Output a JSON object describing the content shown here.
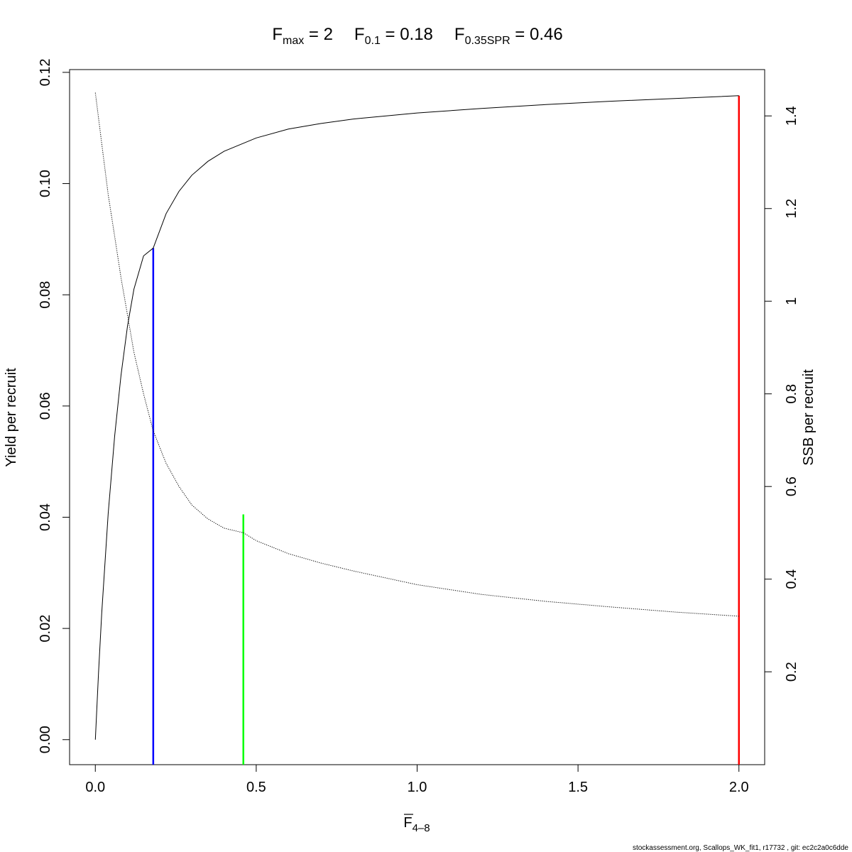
{
  "chart_data": {
    "type": "line",
    "title_parts": [
      {
        "main": "F",
        "sub": "max",
        "rest": " = 2"
      },
      {
        "main": "F",
        "sub": "0.1",
        "rest": " = 0.18"
      },
      {
        "main": "F",
        "sub": "0.35SPR",
        "rest": " = 0.46"
      }
    ],
    "xlabel_main": "F",
    "xlabel_sub": "4–8",
    "ylabel": "Yield per recruit",
    "y2label": "SSB per recruit",
    "xlim": [
      -0.08,
      2.08
    ],
    "ylim": [
      -0.0045,
      0.1205
    ],
    "y2lim": [
      -0.0005,
      1.5
    ],
    "x_ticks": [
      "0.0",
      "0.5",
      "1.0",
      "1.5",
      "2.0"
    ],
    "y_ticks": [
      "0.00",
      "0.02",
      "0.04",
      "0.06",
      "0.08",
      "0.10",
      "0.12"
    ],
    "y2_ticks": [
      "0.2",
      "0.4",
      "0.6",
      "0.8",
      "1",
      "1.2",
      "1.4"
    ],
    "series": [
      {
        "axis": "left",
        "style": "solid",
        "x": [
          0,
          0.01,
          0.02,
          0.04,
          0.06,
          0.08,
          0.1,
          0.12,
          0.15,
          0.18,
          0.22,
          0.26,
          0.3,
          0.35,
          0.4,
          0.5,
          0.6,
          0.7,
          0.8,
          1.0,
          1.2,
          1.4,
          1.6,
          1.8,
          2.0
        ],
        "y": [
          0.0,
          0.0121,
          0.0228,
          0.0407,
          0.0546,
          0.0656,
          0.0744,
          0.081,
          0.087,
          0.0884,
          0.0946,
          0.0986,
          0.1015,
          0.104,
          0.1058,
          0.1082,
          0.1098,
          0.1108,
          0.1116,
          0.1127,
          0.1135,
          0.1142,
          0.1148,
          0.1153,
          0.1158
        ]
      },
      {
        "axis": "right",
        "style": "dotted",
        "x": [
          0,
          0.02,
          0.04,
          0.06,
          0.08,
          0.1,
          0.12,
          0.15,
          0.18,
          0.22,
          0.26,
          0.3,
          0.35,
          0.4,
          0.46,
          0.5,
          0.6,
          0.7,
          0.8,
          1.0,
          1.2,
          1.4,
          1.6,
          1.8,
          2.0
        ],
        "y": [
          1.45,
          1.34,
          1.23,
          1.14,
          1.05,
          0.97,
          0.89,
          0.8,
          0.72,
          0.65,
          0.6,
          0.56,
          0.53,
          0.51,
          0.5,
          0.483,
          0.455,
          0.435,
          0.418,
          0.388,
          0.367,
          0.352,
          0.34,
          0.329,
          0.32
        ]
      }
    ],
    "reference_lines": [
      {
        "x": 0.18,
        "y": 0.0884,
        "color": "#0000ff"
      },
      {
        "x": 0.46,
        "y": 0.0405,
        "color": "#00ff00"
      },
      {
        "x": 2.0,
        "y": 0.1158,
        "color": "#ff0000"
      }
    ],
    "footer": "stockassessment.org, Scallops_WK_fit1, r17732 , git: ec2c2a0c6dde"
  }
}
